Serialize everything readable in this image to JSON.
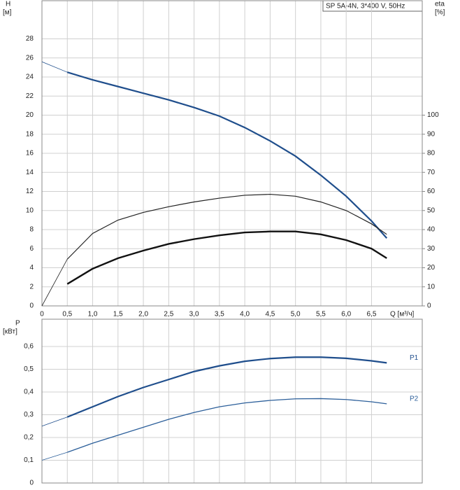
{
  "chart_data": [
    {
      "type": "line",
      "y_label": "H",
      "y_unit": "[м]",
      "y2_label": "eta",
      "y2_unit": "[%]",
      "x_label": "Q [м³/ч]",
      "legend_text": "SP 5A-4N, 3*400 V, 50Hz",
      "x": [
        0,
        0.5,
        1.0,
        1.5,
        2.0,
        2.5,
        3.0,
        3.5,
        4.0,
        4.5,
        5.0,
        5.5,
        6.0,
        6.5,
        6.8
      ],
      "xlim": [
        0,
        7.5
      ],
      "xticks": [
        0,
        {
          "value": 0.5,
          "label": "0,5"
        },
        {
          "value": 1.0,
          "label": "1,0"
        },
        {
          "value": 1.5,
          "label": "1,5"
        },
        {
          "value": 2.0,
          "label": "2,0"
        },
        {
          "value": 2.5,
          "label": "2,5"
        },
        {
          "value": 3.0,
          "label": "3,0"
        },
        {
          "value": 3.5,
          "label": "3,5"
        },
        {
          "value": 4.0,
          "label": "4,0"
        },
        {
          "value": 4.5,
          "label": "4,5"
        },
        {
          "value": 5.0,
          "label": "5,0"
        },
        {
          "value": 5.5,
          "label": "5,5"
        },
        {
          "value": 6.0,
          "label": "6,0"
        },
        {
          "value": 6.5,
          "label": "6,5"
        }
      ],
      "ylim": [
        0,
        32
      ],
      "yticks": [
        0,
        2,
        4,
        6,
        8,
        10,
        12,
        14,
        16,
        18,
        20,
        22,
        24,
        26,
        28
      ],
      "y2lim": [
        0,
        160
      ],
      "y2ticks": [
        0,
        10,
        20,
        30,
        40,
        50,
        60,
        70,
        80,
        90,
        100
      ],
      "grid": true,
      "series": [
        {
          "color": "#1f4e8c",
          "line_width": 2.2,
          "lead_in": true,
          "values": [
            25.6,
            24.5,
            23.7,
            23.0,
            22.3,
            21.6,
            20.8,
            19.9,
            18.7,
            17.3,
            15.7,
            13.7,
            11.5,
            8.9,
            7.1
          ]
        },
        {
          "color": "#222222",
          "line_width": 1.2,
          "lead_in": true,
          "axis": "y2",
          "values": [
            0,
            24.5,
            38,
            45,
            49,
            52,
            54.5,
            56.5,
            58,
            58.5,
            57.5,
            54.5,
            50,
            43,
            37.5
          ]
        },
        {
          "color": "#111111",
          "line_width": 2.4,
          "axis": "y2",
          "values": [
            null,
            11.5,
            19.5,
            25,
            29,
            32.5,
            35,
            37,
            38.5,
            39,
            39,
            37.5,
            34.5,
            30,
            25
          ]
        }
      ]
    },
    {
      "type": "line",
      "y_label": "P",
      "y_unit": "[кВт]",
      "x": [
        0,
        0.5,
        1.0,
        1.5,
        2.0,
        2.5,
        3.0,
        3.5,
        4.0,
        4.5,
        5.0,
        5.5,
        6.0,
        6.5,
        6.8
      ],
      "xlim": [
        0,
        7.5
      ],
      "xticks": [
        0,
        0.5,
        1.0,
        1.5,
        2.0,
        2.5,
        3.0,
        3.5,
        4.0,
        4.5,
        5.0,
        5.5,
        6.0,
        6.5
      ],
      "ylim": [
        0,
        0.72
      ],
      "yticks": [
        0,
        {
          "value": 0.1,
          "label": "0,1"
        },
        {
          "value": 0.2,
          "label": "0,2"
        },
        {
          "value": 0.3,
          "label": "0,3"
        },
        {
          "value": 0.4,
          "label": "0,4"
        },
        {
          "value": 0.5,
          "label": "0,5"
        },
        {
          "value": 0.6,
          "label": "0,6"
        }
      ],
      "grid": true,
      "series": [
        {
          "name": "P1",
          "color": "#1f4e8c",
          "line_width": 2.2,
          "lead_in": true,
          "values": [
            0.25,
            0.29,
            0.335,
            0.38,
            0.42,
            0.455,
            0.49,
            0.515,
            0.535,
            0.547,
            0.553,
            0.553,
            0.548,
            0.537,
            0.528
          ]
        },
        {
          "name": "P2",
          "color": "#2c5f9a",
          "line_width": 1.3,
          "lead_in": true,
          "values": [
            0.1,
            0.135,
            0.175,
            0.21,
            0.245,
            0.28,
            0.31,
            0.335,
            0.352,
            0.363,
            0.37,
            0.371,
            0.367,
            0.357,
            0.348
          ]
        }
      ]
    }
  ]
}
